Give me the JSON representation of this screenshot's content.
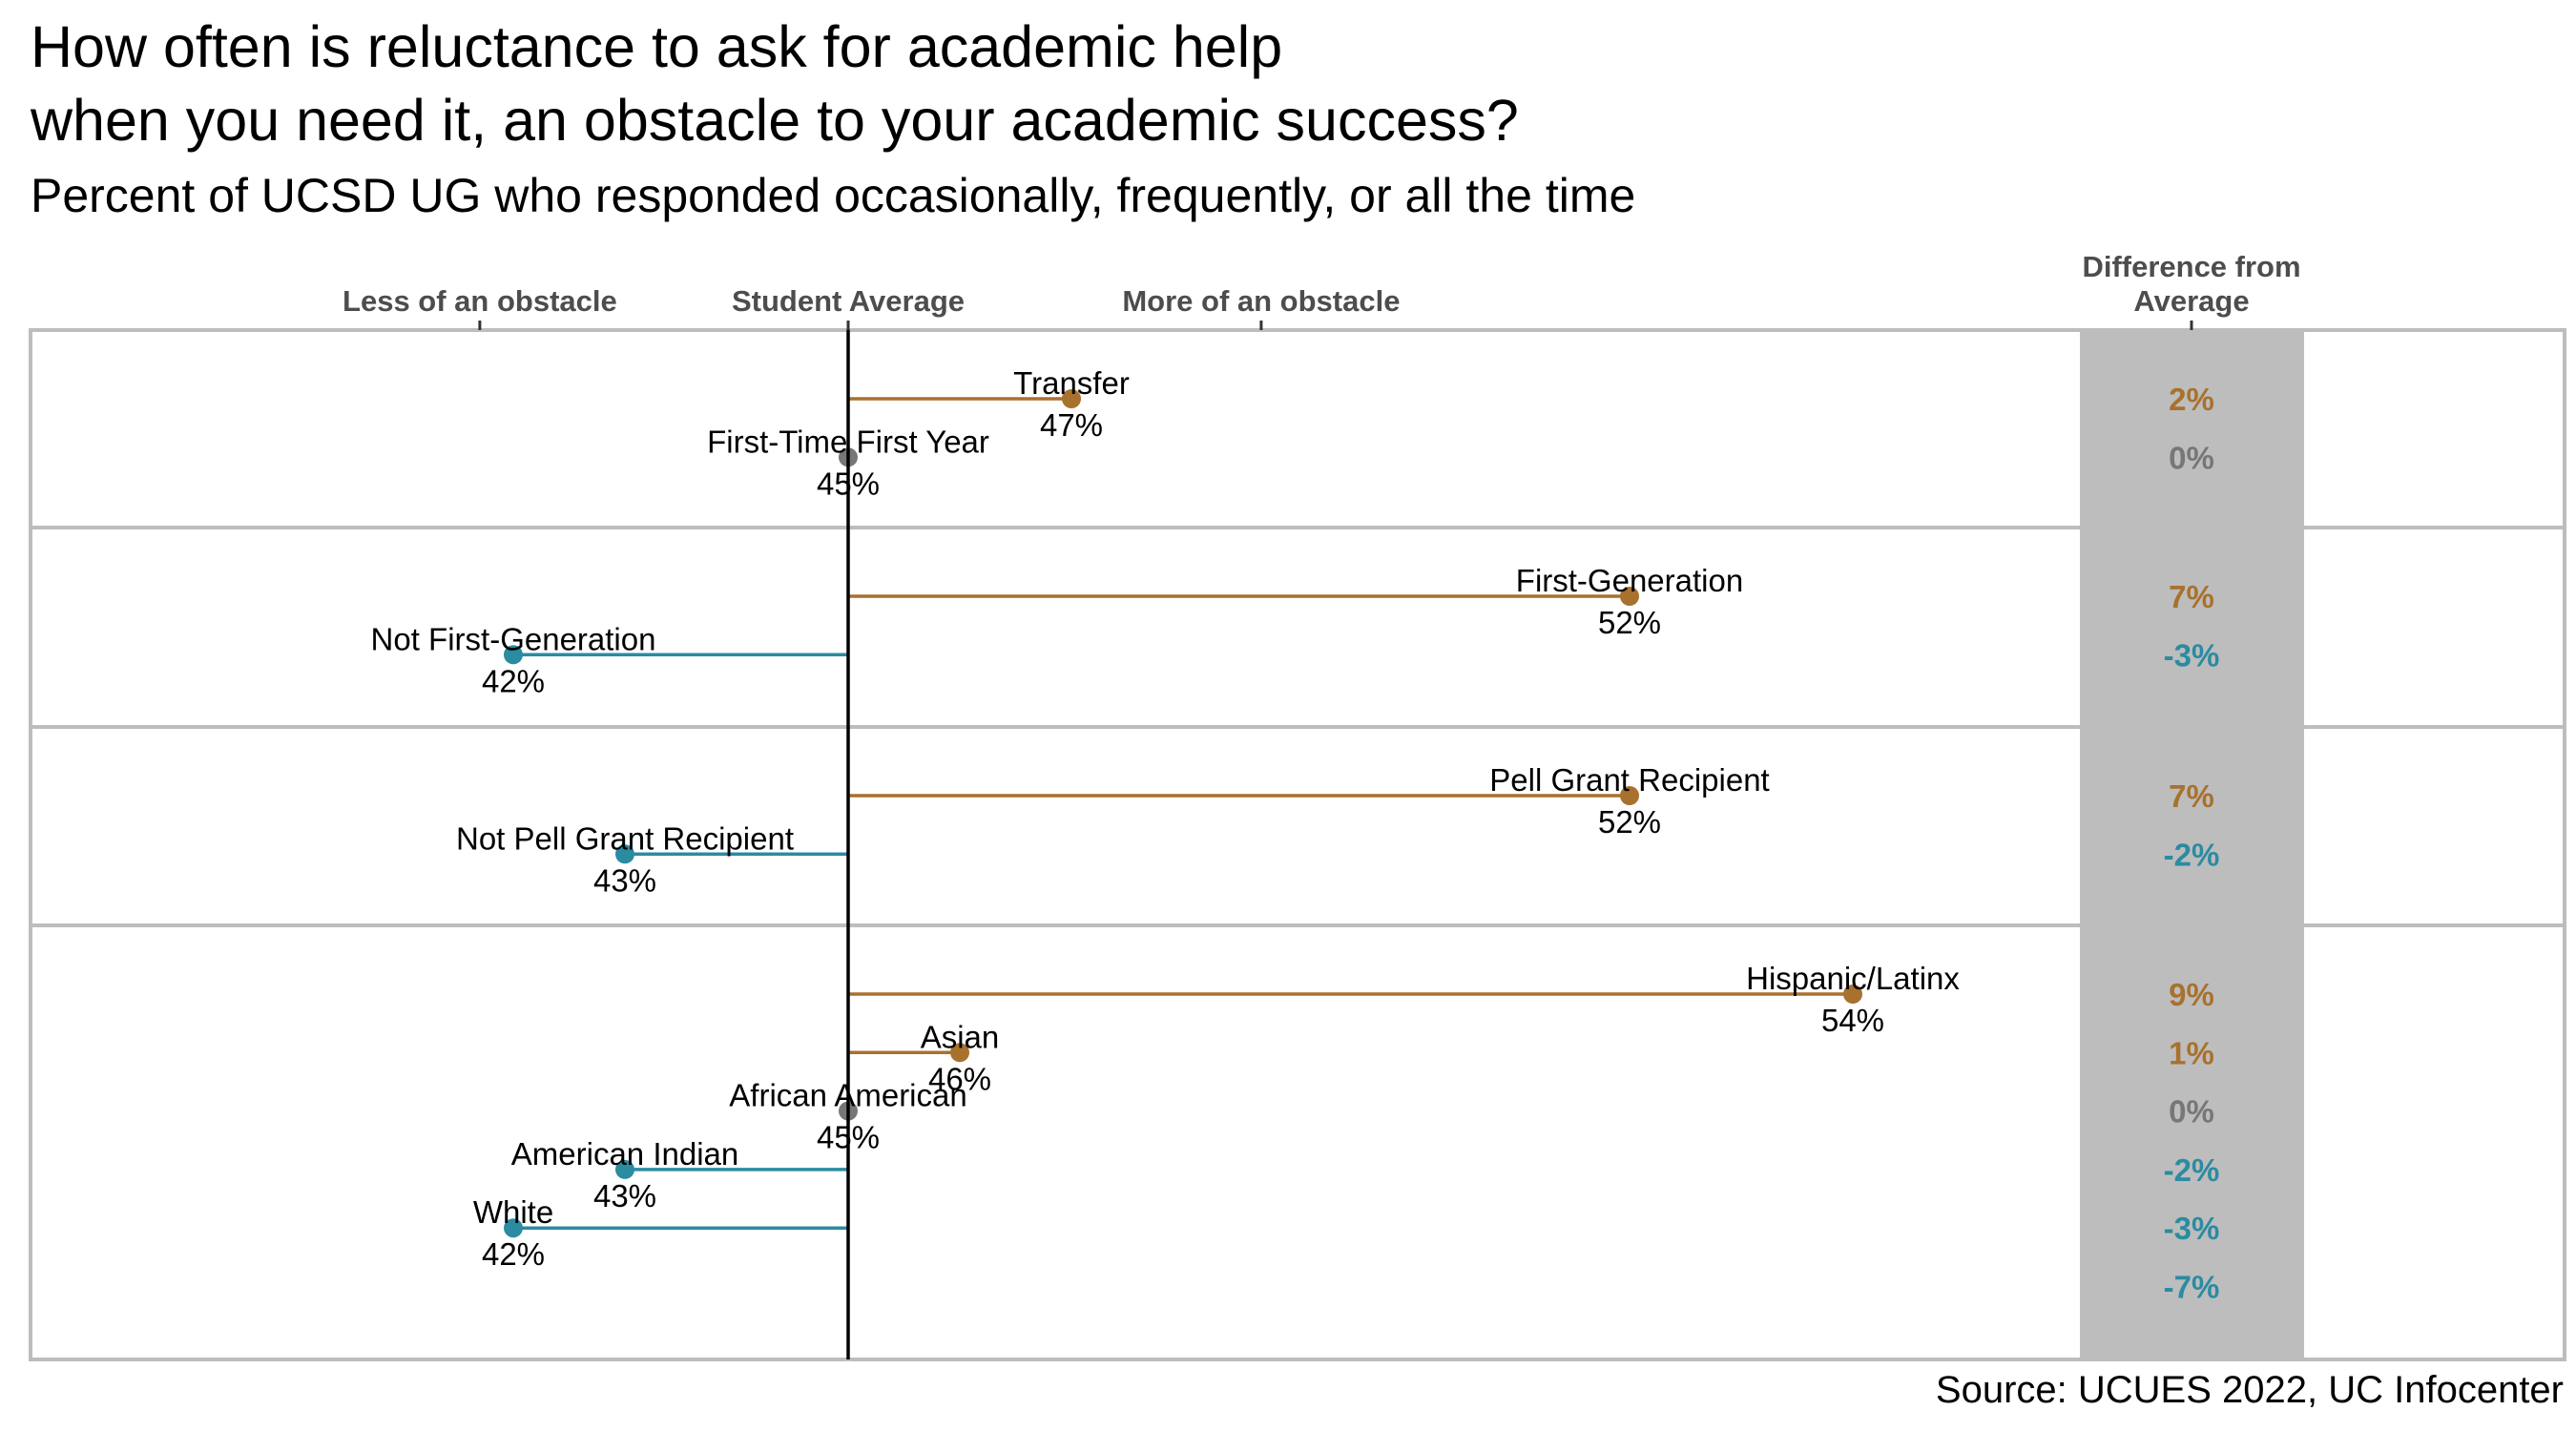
{
  "title_line1": "How often is reluctance to ask for academic help",
  "title_line2": "when you need it, an obstacle to your academic success?",
  "subtitle": "Percent of UCSD UG who responded occasionally, frequently, or all the time",
  "source": "Source: UCUES 2022, UC Infocenter",
  "colors": {
    "above": "#a8712e",
    "below": "#2b8ba1",
    "equal": "#777777",
    "axis": "#000000",
    "band": "#bdbdbd"
  },
  "chart_data": {
    "type": "dot-lollipop",
    "average": 45,
    "x_range": [
      40,
      55
    ],
    "axis_labels": [
      {
        "text": "Less of an obstacle",
        "value": 41.7
      },
      {
        "text": "Student Average",
        "value": 45
      },
      {
        "text": "More of an obstacle",
        "value": 48.7
      }
    ],
    "diff_header": [
      "Difference from",
      "Average"
    ],
    "panels": [
      {
        "rows": [
          {
            "label": "Transfer",
            "value": 47,
            "value_label": "47%",
            "diff": "2%"
          },
          {
            "label": "First-Time First Year",
            "value": 45,
            "value_label": "45%",
            "diff": "0%"
          }
        ]
      },
      {
        "rows": [
          {
            "label": "First-Generation",
            "value": 52,
            "value_label": "52%",
            "diff": "7%"
          },
          {
            "label": "Not First-Generation",
            "value": 42,
            "value_label": "42%",
            "diff": "-3%"
          }
        ]
      },
      {
        "rows": [
          {
            "label": "Pell Grant Recipient",
            "value": 52,
            "value_label": "52%",
            "diff": "7%"
          },
          {
            "label": "Not Pell Grant Recipient",
            "value": 43,
            "value_label": "43%",
            "diff": "-2%"
          }
        ]
      },
      {
        "rows": [
          {
            "label": "Hispanic/Latinx",
            "value": 54,
            "value_label": "54%",
            "diff": "9%"
          },
          {
            "label": "Asian",
            "value": 46,
            "value_label": "46%",
            "diff": "1%"
          },
          {
            "label": "African American",
            "value": 45,
            "value_label": "45%",
            "diff": "0%"
          },
          {
            "label": "American Indian",
            "value": 43,
            "value_label": "43%",
            "diff": "-2%"
          },
          {
            "label": "White",
            "value": 42,
            "value_label": "42%",
            "diff": "-3%"
          },
          {
            "label": "",
            "value": null,
            "value_label": "",
            "diff": "-7%"
          }
        ]
      }
    ]
  }
}
